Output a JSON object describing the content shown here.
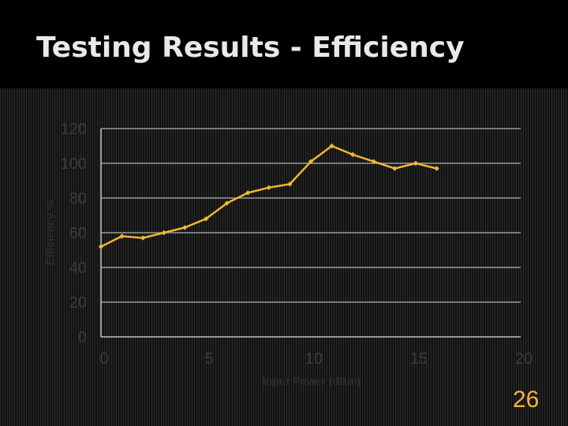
{
  "slide": {
    "title": "Testing Results - Efficiency",
    "page_number": "26"
  },
  "colors": {
    "series": "#f2b632",
    "grid": "#9a9a9a",
    "axis": "#bfbfbf",
    "tick_text": "#3c3c3c",
    "label_text": "#2c2c2c",
    "title_text": "#e9e9e9"
  },
  "chart_data": {
    "type": "scatter",
    "title": "",
    "xlabel": "Input Power (dBm)",
    "ylabel": "Efficiency %",
    "xlim": [
      0,
      20
    ],
    "ylim": [
      0,
      120
    ],
    "xticks": [
      0,
      5,
      10,
      15,
      20
    ],
    "yticks": [
      0,
      20,
      40,
      60,
      80,
      100,
      120
    ],
    "grid": "horizontal",
    "series": [
      {
        "x": [
          0,
          1,
          2,
          3,
          4,
          5,
          6,
          7,
          8,
          9,
          10,
          11,
          12,
          13,
          14,
          15,
          16
        ],
        "y": [
          52,
          58,
          57,
          60,
          63,
          68,
          77,
          83,
          86,
          88,
          101,
          110,
          105,
          101,
          97,
          100,
          97
        ]
      }
    ]
  }
}
